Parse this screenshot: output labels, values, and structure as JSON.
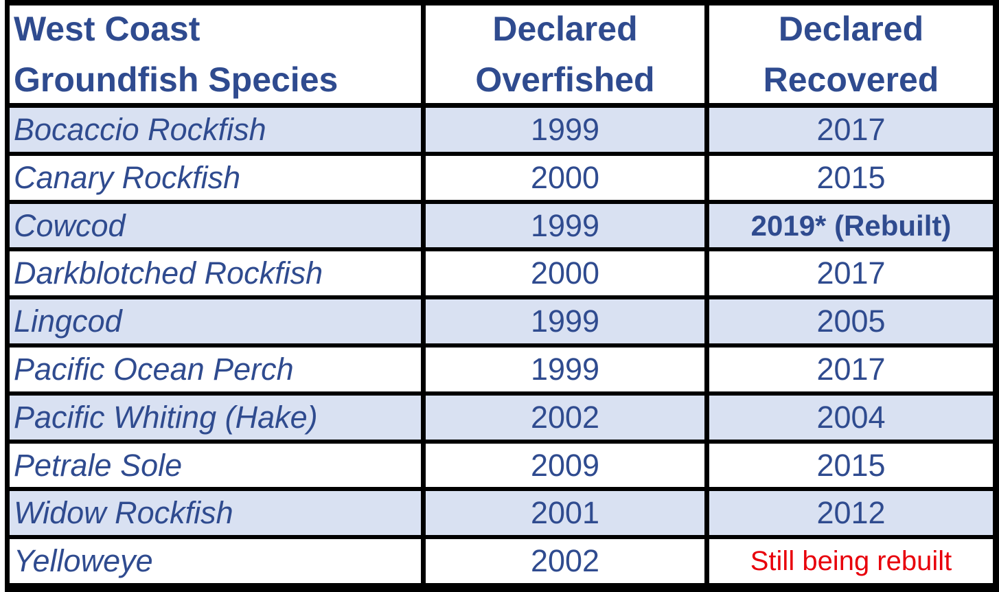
{
  "table": {
    "header": [
      [
        "West Coast",
        "Groundfish Species"
      ],
      [
        "Declared",
        "Overfished"
      ],
      [
        "Declared",
        "Recovered"
      ]
    ],
    "rows": [
      [
        "Bocaccio Rockfish",
        1999,
        2017
      ],
      [
        "Canary Rockfish",
        2000,
        2015
      ],
      [
        "Cowcod",
        1999,
        "2019* (Rebuilt)"
      ],
      [
        "Darkblotched Rockfish",
        2000,
        2017
      ],
      [
        "Lingcod",
        1999,
        2005
      ],
      [
        "Pacific Ocean Perch",
        1999,
        2017
      ],
      [
        "Pacific Whiting (Hake)",
        2002,
        2004
      ],
      [
        "Petrale Sole",
        2009,
        2015
      ],
      [
        "Widow Rockfish",
        2001,
        2012
      ],
      [
        "Yelloweye",
        2002,
        "Still being rebuilt"
      ]
    ]
  }
}
